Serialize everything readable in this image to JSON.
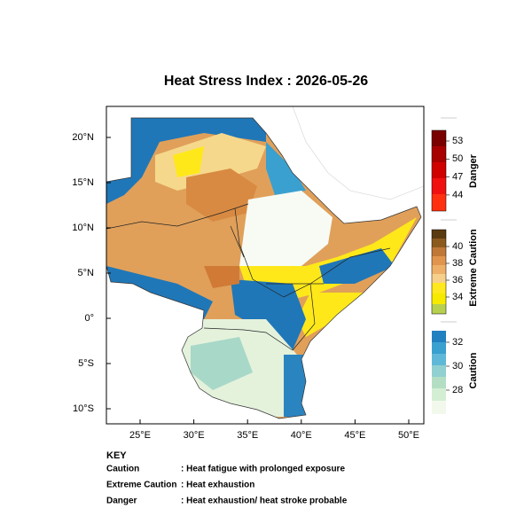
{
  "title": "Heat Stress Index : 2026-05-26",
  "map": {
    "lon_ticks": [
      "25°E",
      "30°E",
      "35°E",
      "40°E",
      "45°E",
      "50°E"
    ],
    "lat_ticks": [
      "20°N",
      "15°N",
      "10°N",
      "5°N",
      "0°",
      "5°S",
      "10°S"
    ]
  },
  "legend": {
    "danger": {
      "label": "Danger",
      "ticks": [
        53,
        50,
        47,
        44
      ]
    },
    "extreme_caution": {
      "label": "Extreme Caution",
      "ticks": [
        40,
        38,
        36,
        34
      ]
    },
    "caution": {
      "label": "Caution",
      "ticks": [
        32,
        30,
        28
      ]
    }
  },
  "key": {
    "heading": "KEY",
    "rows": [
      [
        "Caution",
        ": Heat fatigue with prolonged exposure"
      ],
      [
        "Extreme Caution",
        ": Heat exhaustion"
      ],
      [
        "Danger",
        ": Heat exhaustion/ heat stroke probable"
      ]
    ]
  }
}
